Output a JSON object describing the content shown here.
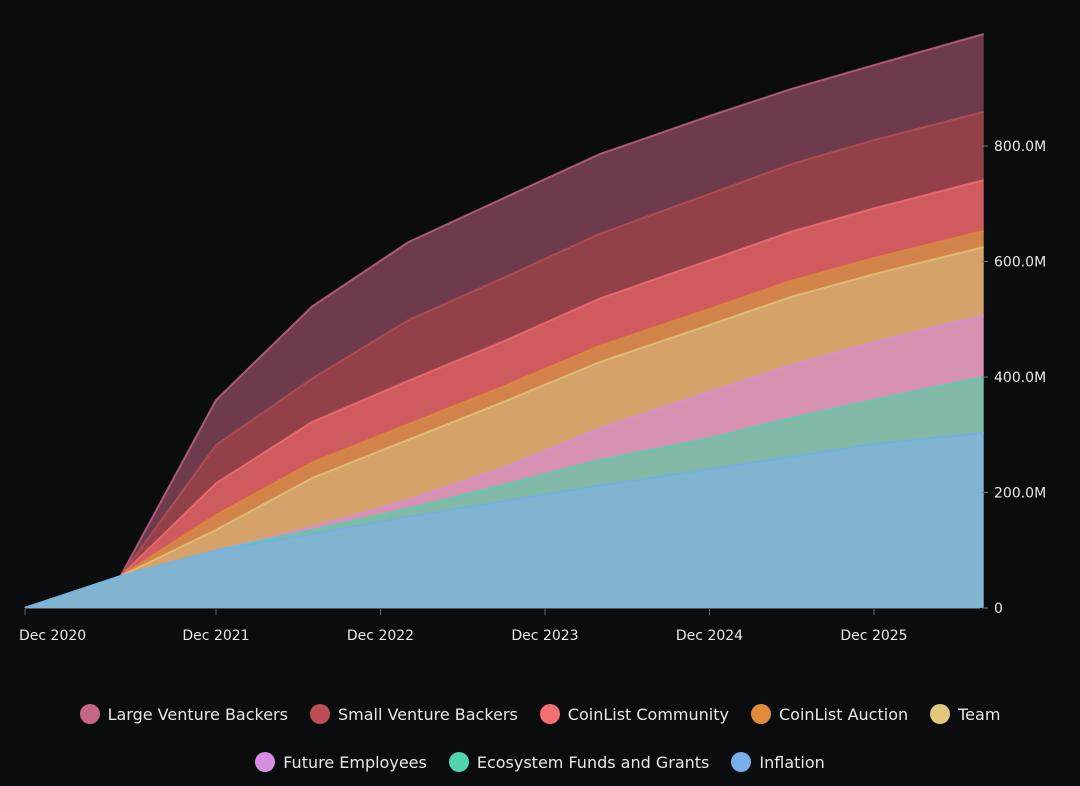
{
  "chart_data": {
    "type": "area",
    "stacked": true,
    "title": "",
    "xlabel": "",
    "ylabel": "",
    "x": [
      "2020-12",
      "2021-06",
      "2021-12",
      "2022-07",
      "2023-02",
      "2023-09",
      "2024-04",
      "2024-12",
      "2025-06",
      "2025-12",
      "2026-08"
    ],
    "x_ticks": [
      "Dec 2020",
      "Dec 2021",
      "Dec 2022",
      "Dec 2023",
      "Dec 2024",
      "Dec 2025"
    ],
    "y_ticks": [
      "0",
      "200.0M",
      "400.0M",
      "600.0M",
      "800.0M"
    ],
    "y_tick_values": [
      0,
      200,
      400,
      600,
      800
    ],
    "ylim": [
      0,
      1000
    ],
    "y_unit": "M",
    "grid": false,
    "legend_placement": "bottom",
    "series": [
      {
        "name": "Inflation",
        "color": "#77b0ea",
        "fill": "#84bad8",
        "values": [
          0,
          55,
          100,
          128,
          158,
          185,
          212,
          240,
          262,
          284,
          303
        ]
      },
      {
        "name": "Ecosystem Funds and Grants",
        "color": "#4fd6b1",
        "fill": "#86c0ac",
        "values": [
          0,
          0,
          0,
          7,
          14,
          28,
          44,
          54,
          67,
          76,
          97
        ]
      },
      {
        "name": "Future Employees",
        "color": "#d88ee0",
        "fill": "#de97b7",
        "values": [
          0,
          0,
          0,
          5,
          15,
          30,
          55,
          80,
          92,
          100,
          107
        ]
      },
      {
        "name": "Team",
        "color": "#e3c77a",
        "fill": "#dca86c",
        "values": [
          0,
          0,
          35,
          85,
          104,
          114,
          115,
          116,
          118,
          118,
          118
        ]
      },
      {
        "name": "CoinList Auction",
        "color": "#e08a3c",
        "fill": "#d9874c",
        "values": [
          0,
          0,
          26,
          27,
          27,
          27,
          28,
          28,
          28,
          28,
          28
        ]
      },
      {
        "name": "CoinList Community",
        "color": "#f46f73",
        "fill": "#d75e62",
        "values": [
          0,
          0,
          55,
          70,
          75,
          78,
          82,
          84,
          85,
          86,
          88
        ]
      },
      {
        "name": "Small Venture Backers",
        "color": "#b84f55",
        "fill": "#98434b",
        "values": [
          0,
          0,
          66,
          75,
          105,
          110,
          112,
          115,
          117,
          118,
          118
        ]
      },
      {
        "name": "Large Venture Backers",
        "color": "#c4668a",
        "fill": "#723d50",
        "values": [
          0,
          0,
          78,
          125,
          135,
          138,
          138,
          135,
          130,
          130,
          135
        ]
      }
    ]
  },
  "legend": {
    "row1": [
      {
        "label": "Large Venture Backers",
        "color": "#c4668a"
      },
      {
        "label": "Small Venture Backers",
        "color": "#b84f55"
      },
      {
        "label": "CoinList Community",
        "color": "#f46f73"
      },
      {
        "label": "CoinList Auction",
        "color": "#e08a3c"
      },
      {
        "label": "Team",
        "color": "#e3c77a"
      }
    ],
    "row2": [
      {
        "label": "Future Employees",
        "color": "#d88ee0"
      },
      {
        "label": "Ecosystem Funds and Grants",
        "color": "#4fd6b1"
      },
      {
        "label": "Inflation",
        "color": "#77b0ea"
      }
    ]
  }
}
